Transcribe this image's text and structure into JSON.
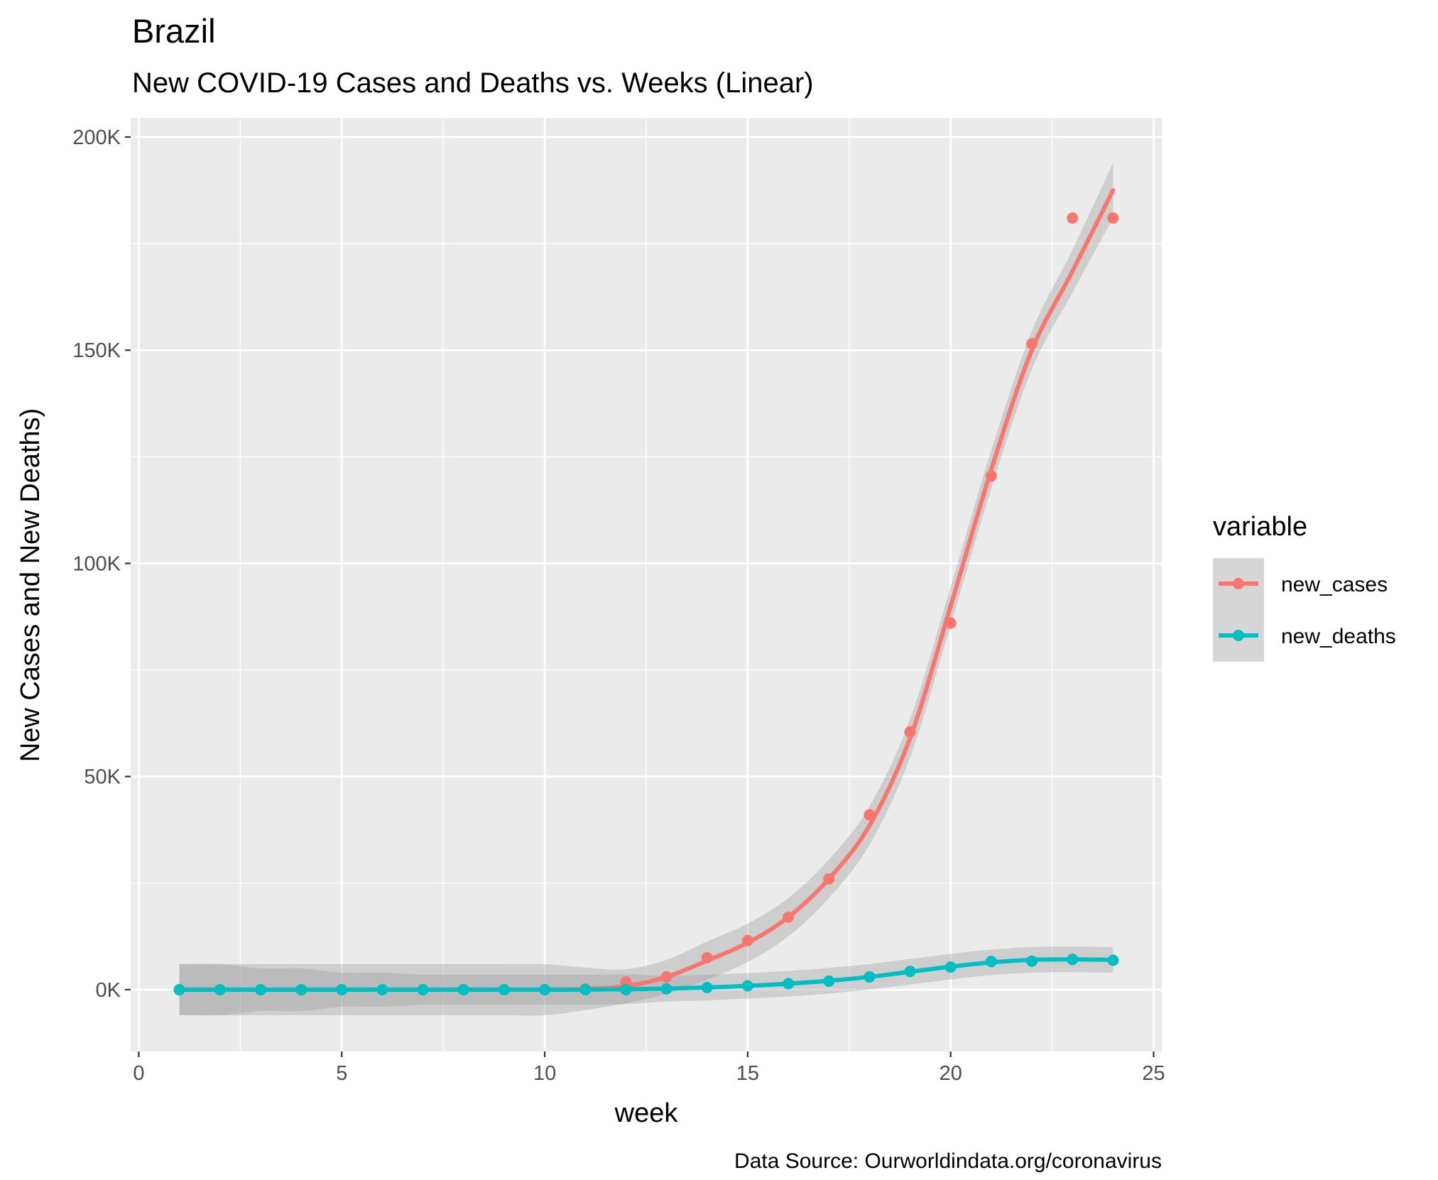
{
  "chart_data": {
    "type": "line",
    "title": "Brazil",
    "subtitle": "New COVID-19 Cases and Deaths vs. Weeks (Linear)",
    "xlabel": "week",
    "ylabel": "New Cases and New Deaths)",
    "caption": "Data Source: Ourworldindata.org/coronavirus",
    "xlim": [
      -0.2,
      25.2
    ],
    "ylim": [
      -14500,
      204500
    ],
    "x_ticks": [
      0,
      5,
      10,
      15,
      20,
      25
    ],
    "x_tick_labels": [
      "0",
      "5",
      "10",
      "15",
      "20",
      "25"
    ],
    "y_ticks": [
      0,
      50000,
      100000,
      150000,
      200000
    ],
    "y_tick_labels": [
      "0K",
      "50K",
      "100K",
      "150K",
      "200K"
    ],
    "grid": true,
    "legend": {
      "title": "variable",
      "position": "right"
    },
    "x": [
      1,
      2,
      3,
      4,
      5,
      6,
      7,
      8,
      9,
      10,
      11,
      12,
      13,
      14,
      15,
      16,
      17,
      18,
      19,
      20,
      21,
      22,
      23,
      24
    ],
    "series": [
      {
        "name": "new_cases",
        "color": "#f8766d",
        "values": [
          0,
          0,
          0,
          0,
          0,
          0,
          0,
          0,
          0,
          0,
          200,
          1800,
          3000,
          7500,
          11500,
          17000,
          26000,
          41000,
          60500,
          86000,
          120500,
          151500,
          181000,
          181000
        ],
        "smooth": [
          0,
          0,
          0,
          0,
          0,
          0,
          0,
          0,
          0,
          0,
          200,
          800,
          3000,
          6800,
          11000,
          17000,
          26000,
          38500,
          59000,
          90000,
          122000,
          150000,
          168500,
          187500
        ],
        "band": [
          6000,
          6000,
          6000,
          6000,
          6000,
          6000,
          6000,
          6000,
          6000,
          6000,
          5000,
          4000,
          4000,
          4500,
          4500,
          4500,
          4500,
          4500,
          4500,
          4500,
          4500,
          4500,
          5000,
          6500
        ]
      },
      {
        "name": "new_deaths",
        "color": "#00bfc4",
        "values": [
          0,
          0,
          0,
          0,
          0,
          0,
          0,
          0,
          0,
          0,
          0,
          0,
          200,
          500,
          900,
          1400,
          2000,
          3000,
          4300,
          5300,
          6600,
          6700,
          7100,
          6900
        ],
        "smooth": [
          0,
          0,
          0,
          0,
          0,
          0,
          0,
          0,
          0,
          0,
          0,
          100,
          250,
          500,
          900,
          1400,
          2100,
          3000,
          4200,
          5400,
          6400,
          7000,
          7100,
          7000
        ],
        "band": [
          6000,
          6000,
          5000,
          5000,
          4000,
          4000,
          3500,
          3500,
          3500,
          3500,
          3500,
          3500,
          3000,
          3000,
          3000,
          3000,
          3000,
          3000,
          3000,
          3000,
          3000,
          3000,
          3000,
          3000
        ]
      }
    ]
  }
}
